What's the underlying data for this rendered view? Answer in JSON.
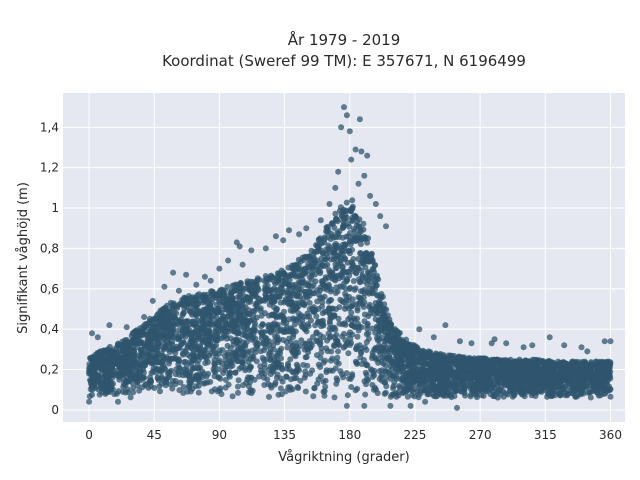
{
  "chart_data": {
    "type": "scatter",
    "title_line1": "År 1979 - 2019",
    "title_line2": "Koordinat (Sweref 99 TM): E 357671, N 6196499",
    "xlabel": "Vågriktning (grader)",
    "ylabel": "Signifikant våghöjd (m)",
    "xlim": [
      -18,
      370
    ],
    "ylim": [
      -0.06,
      1.57
    ],
    "x_ticks": [
      0,
      45,
      90,
      135,
      180,
      225,
      270,
      315,
      360
    ],
    "x_tick_labels": [
      "0",
      "45",
      "90",
      "135",
      "180",
      "225",
      "270",
      "315",
      "360"
    ],
    "y_ticks": [
      0,
      0.2,
      0.4,
      0.6,
      0.8,
      1.0,
      1.2,
      1.4
    ],
    "y_tick_labels": [
      "0",
      "0,2",
      "0,4",
      "0,6",
      "0,8",
      "1",
      "1,2",
      "1,4"
    ],
    "grid": true,
    "marker_color": "#2f566e",
    "plot_bg": "#e5e8f0",
    "envelope": {
      "x": [
        0,
        10,
        20,
        30,
        40,
        50,
        60,
        70,
        80,
        90,
        100,
        110,
        120,
        130,
        140,
        150,
        160,
        170,
        175,
        180,
        185,
        190,
        195,
        200,
        205,
        210,
        220,
        230,
        240,
        250,
        260,
        270,
        280,
        290,
        300,
        310,
        320,
        330,
        340,
        350,
        360
      ],
      "upper": [
        0.26,
        0.3,
        0.33,
        0.38,
        0.44,
        0.5,
        0.55,
        0.57,
        0.58,
        0.6,
        0.62,
        0.64,
        0.66,
        0.68,
        0.72,
        0.78,
        0.86,
        0.98,
        1.02,
        1.06,
        1.0,
        0.92,
        0.8,
        0.64,
        0.5,
        0.42,
        0.34,
        0.3,
        0.28,
        0.27,
        0.26,
        0.26,
        0.25,
        0.25,
        0.25,
        0.25,
        0.24,
        0.24,
        0.24,
        0.24,
        0.24
      ],
      "lower": 0.06
    },
    "outliers": [
      {
        "x": 176,
        "y": 1.5
      },
      {
        "x": 178,
        "y": 1.46
      },
      {
        "x": 187,
        "y": 1.44
      },
      {
        "x": 174,
        "y": 1.4
      },
      {
        "x": 180,
        "y": 1.38
      },
      {
        "x": 184,
        "y": 1.29
      },
      {
        "x": 188,
        "y": 1.28
      },
      {
        "x": 192,
        "y": 1.26
      },
      {
        "x": 181,
        "y": 1.24
      },
      {
        "x": 172,
        "y": 1.18
      },
      {
        "x": 190,
        "y": 1.16
      },
      {
        "x": 186,
        "y": 1.12
      },
      {
        "x": 170,
        "y": 1.1
      },
      {
        "x": 194,
        "y": 1.06
      },
      {
        "x": 198,
        "y": 1.02
      },
      {
        "x": 166,
        "y": 1.02
      },
      {
        "x": 201,
        "y": 0.96
      },
      {
        "x": 205,
        "y": 0.91
      },
      {
        "x": 160,
        "y": 0.94
      },
      {
        "x": 150,
        "y": 0.9
      },
      {
        "x": 138,
        "y": 0.89
      },
      {
        "x": 129,
        "y": 0.86
      },
      {
        "x": 134,
        "y": 0.84
      },
      {
        "x": 145,
        "y": 0.87
      },
      {
        "x": 102,
        "y": 0.83
      },
      {
        "x": 104,
        "y": 0.81
      },
      {
        "x": 112,
        "y": 0.79
      },
      {
        "x": 122,
        "y": 0.8
      },
      {
        "x": 96,
        "y": 0.74
      },
      {
        "x": 106,
        "y": 0.72
      },
      {
        "x": 90,
        "y": 0.7
      },
      {
        "x": 58,
        "y": 0.68
      },
      {
        "x": 67,
        "y": 0.67
      },
      {
        "x": 80,
        "y": 0.66
      },
      {
        "x": 84,
        "y": 0.64
      },
      {
        "x": 52,
        "y": 0.61
      },
      {
        "x": 74,
        "y": 0.62
      },
      {
        "x": 62,
        "y": 0.59
      },
      {
        "x": 44,
        "y": 0.54
      },
      {
        "x": 38,
        "y": 0.46
      },
      {
        "x": 26,
        "y": 0.41
      },
      {
        "x": 14,
        "y": 0.42
      },
      {
        "x": 2,
        "y": 0.38
      },
      {
        "x": 6,
        "y": 0.36
      },
      {
        "x": 246,
        "y": 0.42
      },
      {
        "x": 228,
        "y": 0.4
      },
      {
        "x": 238,
        "y": 0.36
      },
      {
        "x": 256,
        "y": 0.34
      },
      {
        "x": 264,
        "y": 0.33
      },
      {
        "x": 278,
        "y": 0.33
      },
      {
        "x": 280,
        "y": 0.35
      },
      {
        "x": 288,
        "y": 0.33
      },
      {
        "x": 300,
        "y": 0.31
      },
      {
        "x": 306,
        "y": 0.32
      },
      {
        "x": 318,
        "y": 0.36
      },
      {
        "x": 328,
        "y": 0.32
      },
      {
        "x": 340,
        "y": 0.31
      },
      {
        "x": 344,
        "y": 0.29
      },
      {
        "x": 356,
        "y": 0.34
      },
      {
        "x": 360,
        "y": 0.34
      },
      {
        "x": 254,
        "y": 0.01
      },
      {
        "x": 208,
        "y": 0.02
      },
      {
        "x": 222,
        "y": 0.02
      },
      {
        "x": 190,
        "y": 0.02
      },
      {
        "x": 178,
        "y": 0.02
      },
      {
        "x": 232,
        "y": 0.04
      },
      {
        "x": 0,
        "y": 0.04
      },
      {
        "x": 20,
        "y": 0.04
      }
    ]
  }
}
